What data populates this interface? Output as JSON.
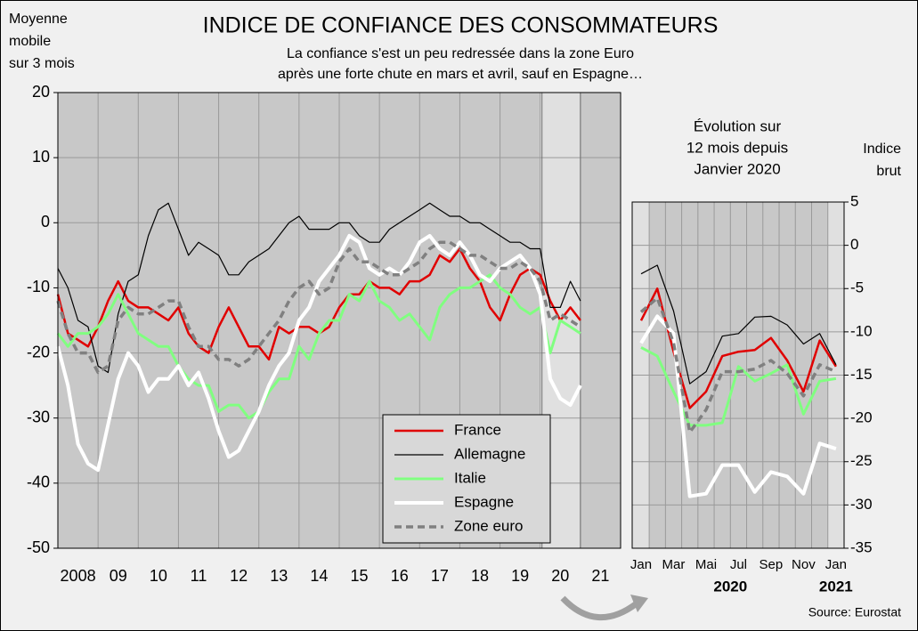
{
  "chart_data": [
    {
      "type": "line",
      "title": "INDICE DE CONFIANCE DES CONSOMMATEURS",
      "subtitle": [
        "La confiance s'est un peu redressée dans la zone Euro",
        "après une forte chute en mars et avril, sauf en Espagne…"
      ],
      "y_label": [
        "Moyenne",
        "mobile",
        "sur 3 mois"
      ],
      "xlim": [
        2008,
        2022
      ],
      "ylim": [
        -50,
        20
      ],
      "yticks": [
        20,
        10,
        0,
        -10,
        -20,
        -30,
        -40,
        -50
      ],
      "xticks": [
        {
          "value": 2008.5,
          "label": "2008"
        },
        {
          "value": 2009.5,
          "label": "09"
        },
        {
          "value": 2010.5,
          "label": "10"
        },
        {
          "value": 2011.5,
          "label": "11"
        },
        {
          "value": 2012.5,
          "label": "12"
        },
        {
          "value": 2013.5,
          "label": "13"
        },
        {
          "value": 2014.5,
          "label": "14"
        },
        {
          "value": 2015.5,
          "label": "15"
        },
        {
          "value": 2016.5,
          "label": "16"
        },
        {
          "value": 2017.5,
          "label": "17"
        },
        {
          "value": 2018.5,
          "label": "18"
        },
        {
          "value": 2019.5,
          "label": "19"
        },
        {
          "value": 2020.5,
          "label": "20"
        },
        {
          "value": 2021.5,
          "label": "21"
        }
      ],
      "highlight": [
        2020,
        2021
      ],
      "grid": true,
      "x": [
        2008,
        2008.25,
        2008.5,
        2008.75,
        2009,
        2009.25,
        2009.5,
        2009.75,
        2010,
        2010.25,
        2010.5,
        2010.75,
        2011,
        2011.25,
        2011.5,
        2011.75,
        2012,
        2012.25,
        2012.5,
        2012.75,
        2013,
        2013.25,
        2013.5,
        2013.75,
        2014,
        2014.25,
        2014.5,
        2014.75,
        2015,
        2015.25,
        2015.5,
        2015.75,
        2016,
        2016.25,
        2016.5,
        2016.75,
        2017,
        2017.25,
        2017.5,
        2017.75,
        2018,
        2018.25,
        2018.5,
        2018.75,
        2019,
        2019.25,
        2019.5,
        2019.75,
        2020,
        2020.25,
        2020.5,
        2020.75,
        2021
      ],
      "series": [
        {
          "name": "France",
          "color": "#e00000",
          "line_width": 2.5,
          "dashed": false,
          "values": [
            -11,
            -17,
            -18,
            -19,
            -16,
            -12,
            -9,
            -12,
            -13,
            -13,
            -14,
            -15,
            -13,
            -17,
            -19,
            -20,
            -16,
            -13,
            -16,
            -19,
            -19,
            -21,
            -16,
            -17,
            -16,
            -16,
            -17,
            -16,
            -13,
            -11,
            -11,
            -9,
            -10,
            -10,
            -11,
            -9,
            -9,
            -8,
            -5,
            -6,
            -4,
            -7,
            -9,
            -13,
            -15,
            -11,
            -8,
            -7,
            -8,
            -12,
            -15,
            -13,
            -15
          ]
        },
        {
          "name": "Allemagne",
          "color": "#000000",
          "line_width": 1.2,
          "dashed": false,
          "values": [
            -7,
            -10,
            -15,
            -16,
            -22,
            -23,
            -14,
            -9,
            -8,
            -2,
            2,
            3,
            -1,
            -5,
            -3,
            -4,
            -5,
            -8,
            -8,
            -6,
            -5,
            -4,
            -2,
            0,
            1,
            -1,
            -1,
            -1,
            0,
            0,
            -2,
            -3,
            -3,
            -1,
            0,
            1,
            2,
            3,
            2,
            1,
            1,
            0,
            0,
            -1,
            -2,
            -3,
            -3,
            -4,
            -4,
            -13,
            -13,
            -9,
            -12
          ]
        },
        {
          "name": "Italie",
          "color": "#80ff80",
          "line_width": 3,
          "dashed": false,
          "values": [
            -17,
            -19,
            -17,
            -17,
            -16,
            -14,
            -11,
            -14,
            -17,
            -18,
            -19,
            -19,
            -22,
            -24,
            -25,
            -25,
            -29,
            -28,
            -28,
            -30,
            -29,
            -26,
            -24,
            -24,
            -19,
            -21,
            -17,
            -15,
            -15,
            -11,
            -12,
            -9,
            -12,
            -13,
            -15,
            -14,
            -16,
            -18,
            -13,
            -11,
            -10,
            -10,
            -9,
            -8,
            -10,
            -11,
            -13,
            -14,
            -13,
            -20,
            -15,
            -16,
            -17
          ]
        },
        {
          "name": "Espagne",
          "color": "#ffffff",
          "line_width": 4,
          "dashed": false,
          "values": [
            -19,
            -25,
            -34,
            -37,
            -38,
            -31,
            -24,
            -20,
            -22,
            -26,
            -24,
            -24,
            -22,
            -25,
            -23,
            -27,
            -32,
            -36,
            -35,
            -32,
            -29,
            -25,
            -22,
            -20,
            -15,
            -13,
            -9,
            -7,
            -5,
            -2,
            -3,
            -7,
            -8,
            -7,
            -8,
            -6,
            -3,
            -2,
            -4,
            -5,
            -3,
            -5,
            -8,
            -9,
            -7,
            -6,
            -5,
            -7,
            -11,
            -24,
            -27,
            -28,
            -25
          ]
        },
        {
          "name": "Zone euro",
          "color": "#808080",
          "line_width": 3.5,
          "dashed": true,
          "values": [
            -12,
            -17,
            -20,
            -20,
            -23,
            -22,
            -15,
            -13,
            -14,
            -14,
            -13,
            -12,
            -12,
            -16,
            -19,
            -19,
            -21,
            -21,
            -22,
            -21,
            -19,
            -17,
            -15,
            -12,
            -10,
            -9,
            -11,
            -10,
            -6,
            -4,
            -6,
            -6,
            -7,
            -8,
            -8,
            -7,
            -6,
            -4,
            -3,
            -3,
            -4,
            -5,
            -5,
            -6,
            -7,
            -7,
            -6,
            -7,
            -9,
            -15,
            -14,
            -15,
            -16
          ]
        }
      ]
    },
    {
      "type": "line",
      "title": [
        "Évolution sur",
        "12 mois depuis",
        "Janvier 2020"
      ],
      "y_label": [
        "Indice",
        "brut"
      ],
      "categories": [
        "Jan",
        null,
        "Mar",
        null,
        "Mai",
        null,
        "Jul",
        null,
        "Sep",
        null,
        "Nov",
        null,
        "Jan"
      ],
      "year_labels": [
        "2020",
        "2021"
      ],
      "ylim": [
        -35,
        5
      ],
      "yticks": [
        5,
        0,
        -5,
        -10,
        -15,
        -20,
        -25,
        -30,
        -35
      ],
      "grid": true,
      "series": [
        {
          "color": "#e00000",
          "line_width": 2.5,
          "dashed": false,
          "values": [
            -8.7,
            -5,
            -12.3,
            -18.8,
            -16.9,
            -12.8,
            -12.3,
            -12.1,
            -10.7,
            -13.3,
            -16.9,
            -11,
            -14
          ]
        },
        {
          "color": "#000000",
          "line_width": 1.2,
          "dashed": false,
          "values": [
            -3.3,
            -2.3,
            -7.6,
            -16,
            -14.6,
            -10.5,
            -10.2,
            -8.3,
            -8.2,
            -9.2,
            -11.4,
            -10.2,
            -13.8
          ]
        },
        {
          "color": "#80ff80",
          "line_width": 3,
          "dashed": false,
          "values": [
            -11.8,
            -12.8,
            -16.9,
            -20.8,
            -20.8,
            -20.5,
            -14,
            -15.7,
            -14.8,
            -13.8,
            -19.5,
            -15.7,
            -15.4
          ]
        },
        {
          "color": "#ffffff",
          "line_width": 4,
          "dashed": false,
          "values": [
            -11.3,
            -8.2,
            -10.2,
            -29,
            -28.7,
            -25.4,
            -25.4,
            -28.5,
            -26.2,
            -26.7,
            -28.7,
            -22.9,
            -23.5
          ]
        },
        {
          "color": "#808080",
          "line_width": 3.5,
          "dashed": true,
          "values": [
            -7.7,
            -6.1,
            -11.3,
            -21.6,
            -19,
            -14.6,
            -14.6,
            -14.3,
            -13.3,
            -14.8,
            -17.4,
            -13.8,
            -14.6
          ]
        }
      ]
    }
  ],
  "source": "Source: Eurostat"
}
